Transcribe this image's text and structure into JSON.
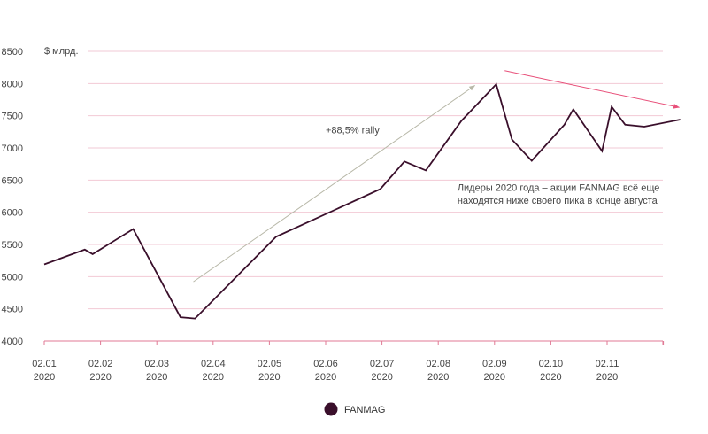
{
  "chart_data": {
    "type": "line",
    "title": "",
    "xlabel": "",
    "ylabel": "$ млрд.",
    "ylim": [
      4000,
      8500
    ],
    "yticks": [
      4000,
      4500,
      5000,
      5500,
      6000,
      6500,
      7000,
      7500,
      8000,
      8500
    ],
    "xlim": [
      0,
      11.3
    ],
    "xticks": [
      {
        "x": 0,
        "line1": "02.01",
        "line2": "2020"
      },
      {
        "x": 1,
        "line1": "02.02",
        "line2": "2020"
      },
      {
        "x": 2,
        "line1": "02.03",
        "line2": "2020"
      },
      {
        "x": 3,
        "line1": "02.04",
        "line2": "2020"
      },
      {
        "x": 4,
        "line1": "02.05",
        "line2": "2020"
      },
      {
        "x": 5,
        "line1": "02.06",
        "line2": "2020"
      },
      {
        "x": 6,
        "line1": "02.07",
        "line2": "2020"
      },
      {
        "x": 7,
        "line1": "02.08",
        "line2": "2020"
      },
      {
        "x": 8,
        "line1": "02.09",
        "line2": "2020"
      },
      {
        "x": 9,
        "line1": "02.10",
        "line2": "2020"
      },
      {
        "x": 10,
        "line1": "02.11",
        "line2": "2020"
      }
    ],
    "grid": true,
    "legend_placement": "bottom-center",
    "series": [
      {
        "name": "FANMAG",
        "color": "#3a0f2b",
        "x": [
          0,
          0.72,
          0.86,
          1.58,
          2.42,
          2.68,
          4.12,
          5.97,
          6.4,
          6.78,
          7.41,
          8.03,
          8.31,
          8.66,
          9.24,
          9.4,
          9.91,
          10.08,
          10.32,
          10.66,
          11.3
        ],
        "y": [
          5190,
          5420,
          5350,
          5740,
          4370,
          4350,
          5620,
          6360,
          6790,
          6650,
          7420,
          7990,
          7130,
          6800,
          7360,
          7600,
          6950,
          7640,
          7360,
          7330,
          7440
        ]
      }
    ],
    "annotations": [
      {
        "text": "+88,5% rally",
        "x": 5.0,
        "y": 7230
      },
      {
        "text": "Лидеры 2020 года – акции FANMAG всё еще",
        "x": 7.34,
        "y": 6330
      },
      {
        "text": "находятся ниже своего пика в конце августа",
        "x": 7.34,
        "y": 6130
      }
    ],
    "arrows": [
      {
        "name": "rally-arrow",
        "from": [
          2.65,
          4920
        ],
        "to": [
          7.65,
          7970
        ],
        "color": "#b8b8a8"
      },
      {
        "name": "decline-arrow",
        "from": [
          8.18,
          8200
        ],
        "to": [
          11.28,
          7630
        ],
        "color": "#e8507a"
      }
    ],
    "colors": {
      "grid": "#f2c9d4",
      "axis": "#e07a95"
    }
  }
}
